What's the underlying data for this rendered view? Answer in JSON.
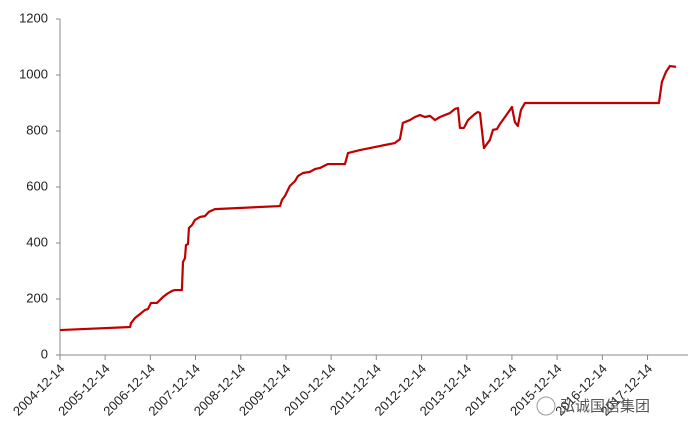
{
  "chart_data": {
    "type": "line",
    "x": [
      "2004-12-14",
      "2006-07-03",
      "2006-07-11",
      "2006-08-12",
      "2006-09-21",
      "2006-11-01",
      "2006-11-25",
      "2006-12-19",
      "2007-02-05",
      "2007-03-26",
      "2007-04-27",
      "2007-06-07",
      "2007-07-01",
      "2007-08-26",
      "2007-09-04",
      "2007-09-20",
      "2007-09-28",
      "2007-10-14",
      "2007-10-22",
      "2007-11-16",
      "2007-12-09",
      "2008-01-19",
      "2008-02-28",
      "2008-03-31",
      "2008-05-03",
      "2008-05-19",
      "2009-10-27",
      "2009-11-12",
      "2009-12-06",
      "2010-01-15",
      "2010-02-25",
      "2010-03-21",
      "2010-04-30",
      "2010-06-26",
      "2010-08-05",
      "2010-09-15",
      "2010-11-18",
      "2011-04-05",
      "2011-04-29",
      "2011-08-04",
      "2011-10-23",
      "2012-02-21",
      "2012-05-12",
      "2012-06-22",
      "2012-07-16",
      "2012-09-11",
      "2012-10-21",
      "2012-12-01",
      "2013-01-10",
      "2013-02-20",
      "2013-04-01",
      "2013-05-12",
      "2013-07-31",
      "2013-09-10",
      "2013-10-04",
      "2013-10-20",
      "2013-11-21",
      "2013-12-24",
      "2014-02-18",
      "2014-03-15",
      "2014-03-31",
      "2014-05-02",
      "2014-06-19",
      "2014-07-14",
      "2014-08-15",
      "2014-09-08",
      "2014-10-19",
      "2014-11-28",
      "2014-12-14",
      "2015-01-07",
      "2015-01-31",
      "2015-02-25",
      "2015-03-29",
      "2018-03-16",
      "2018-04-09",
      "2018-05-12",
      "2018-06-13",
      "2018-08-01"
    ],
    "series": [
      {
        "color": "#c00000",
        "values": [
          89,
          100,
          114,
          132,
          146,
          161,
          164,
          186,
          186,
          207,
          218,
          229,
          232,
          232,
          332,
          346,
          393,
          396,
          454,
          464,
          482,
          493,
          496,
          511,
          518,
          521,
          532,
          554,
          568,
          604,
          621,
          639,
          650,
          654,
          664,
          668,
          682,
          682,
          721,
          732,
          739,
          750,
          757,
          771,
          829,
          839,
          850,
          857,
          850,
          854,
          839,
          850,
          864,
          879,
          882,
          811,
          811,
          839,
          861,
          868,
          864,
          739,
          768,
          804,
          807,
          825,
          850,
          875,
          886,
          832,
          818,
          875,
          900,
          900,
          975,
          1011,
          1032,
          1029
        ]
      }
    ],
    "xlim": [
      "2004-12-14",
      "2018-11-06"
    ],
    "xticks": [
      "2004-12-14",
      "2005-12-14",
      "2006-12-14",
      "2007-12-14",
      "2008-12-14",
      "2009-12-14",
      "2010-12-14",
      "2011-12-14",
      "2012-12-14",
      "2013-12-14",
      "2014-12-14",
      "2015-12-14",
      "2016-12-14",
      "2017-12-14"
    ],
    "ylim": [
      0,
      1200
    ],
    "yticks": [
      0,
      200,
      400,
      600,
      800,
      1000,
      1200
    ],
    "watermark": "弘诚国信集团"
  }
}
